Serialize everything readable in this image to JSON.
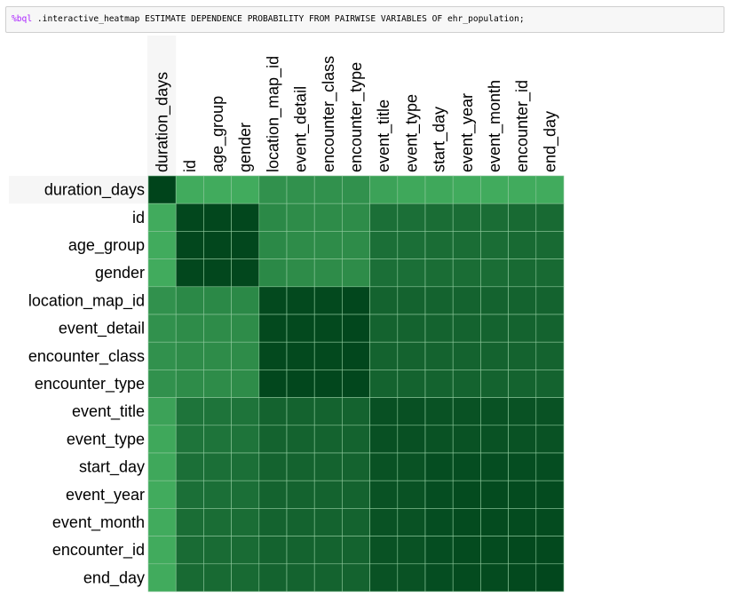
{
  "cell": {
    "magic": "%bql",
    "command": ".interactive_heatmap ESTIMATE DEPENDENCE PROBABILITY FROM PAIRWISE VARIABLES OF ehr_population;"
  },
  "chart_data": {
    "type": "heatmap",
    "variables": [
      "duration_days",
      "id",
      "age_group",
      "gender",
      "location_map_id",
      "event_detail",
      "encounter_class",
      "encounter_type",
      "event_title",
      "event_type",
      "start_day",
      "event_year",
      "event_month",
      "encounter_id",
      "end_day"
    ],
    "values": [
      [
        1.0,
        0.4,
        0.4,
        0.4,
        0.55,
        0.55,
        0.55,
        0.55,
        0.45,
        0.42,
        0.42,
        0.4,
        0.4,
        0.4,
        0.4
      ],
      [
        0.4,
        0.98,
        0.98,
        0.98,
        0.6,
        0.58,
        0.58,
        0.58,
        0.75,
        0.75,
        0.76,
        0.76,
        0.76,
        0.78,
        0.78
      ],
      [
        0.4,
        0.98,
        0.98,
        0.98,
        0.6,
        0.58,
        0.58,
        0.58,
        0.75,
        0.75,
        0.76,
        0.76,
        0.76,
        0.78,
        0.78
      ],
      [
        0.4,
        0.98,
        0.98,
        0.98,
        0.6,
        0.58,
        0.58,
        0.58,
        0.75,
        0.75,
        0.76,
        0.76,
        0.76,
        0.78,
        0.78
      ],
      [
        0.55,
        0.6,
        0.6,
        0.6,
        0.97,
        0.97,
        0.97,
        0.98,
        0.82,
        0.82,
        0.82,
        0.82,
        0.82,
        0.82,
        0.82
      ],
      [
        0.55,
        0.58,
        0.58,
        0.58,
        0.97,
        0.97,
        0.97,
        0.98,
        0.82,
        0.82,
        0.82,
        0.82,
        0.82,
        0.82,
        0.82
      ],
      [
        0.55,
        0.58,
        0.58,
        0.58,
        0.97,
        0.97,
        0.97,
        0.98,
        0.82,
        0.82,
        0.82,
        0.82,
        0.82,
        0.82,
        0.82
      ],
      [
        0.55,
        0.58,
        0.58,
        0.58,
        0.98,
        0.98,
        0.98,
        0.98,
        0.82,
        0.82,
        0.82,
        0.82,
        0.82,
        0.82,
        0.82
      ],
      [
        0.45,
        0.72,
        0.72,
        0.72,
        0.82,
        0.82,
        0.82,
        0.82,
        0.93,
        0.93,
        0.92,
        0.92,
        0.92,
        0.92,
        0.92
      ],
      [
        0.42,
        0.72,
        0.72,
        0.72,
        0.82,
        0.82,
        0.82,
        0.82,
        0.93,
        0.93,
        0.92,
        0.92,
        0.92,
        0.92,
        0.92
      ],
      [
        0.42,
        0.75,
        0.75,
        0.75,
        0.82,
        0.82,
        0.82,
        0.82,
        0.92,
        0.92,
        0.95,
        0.95,
        0.95,
        0.95,
        0.95
      ],
      [
        0.4,
        0.75,
        0.75,
        0.75,
        0.82,
        0.82,
        0.82,
        0.82,
        0.92,
        0.92,
        0.95,
        0.96,
        0.96,
        0.96,
        0.96
      ],
      [
        0.4,
        0.76,
        0.76,
        0.76,
        0.82,
        0.82,
        0.82,
        0.82,
        0.92,
        0.92,
        0.95,
        0.96,
        0.96,
        0.96,
        0.96
      ],
      [
        0.4,
        0.77,
        0.77,
        0.77,
        0.82,
        0.82,
        0.82,
        0.82,
        0.92,
        0.92,
        0.95,
        0.96,
        0.96,
        0.97,
        0.97
      ],
      [
        0.4,
        0.78,
        0.78,
        0.78,
        0.82,
        0.82,
        0.82,
        0.82,
        0.92,
        0.92,
        0.95,
        0.96,
        0.96,
        0.97,
        0.98
      ]
    ],
    "highlighted_row": "duration_days",
    "colors": {
      "low": "#41ab5d",
      "high": "#00441b",
      "row_highlight": "#f6f6f6",
      "grid": "#8fc99d"
    }
  }
}
